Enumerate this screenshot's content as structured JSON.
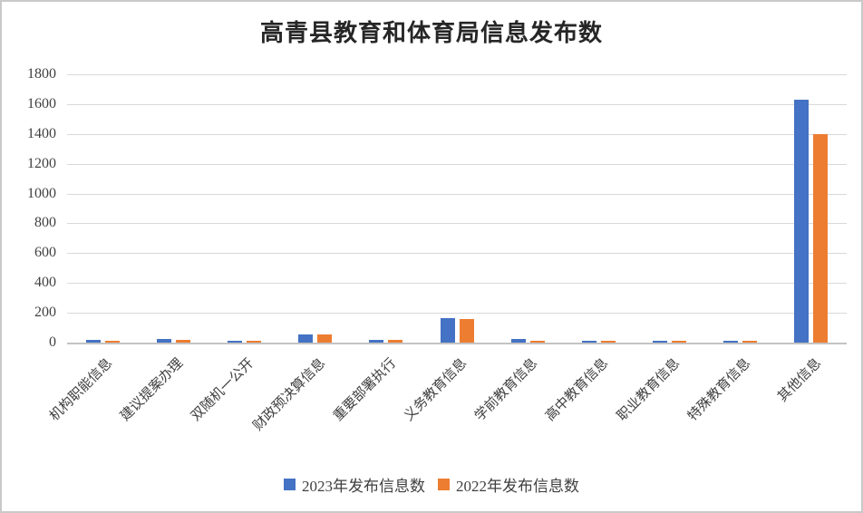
{
  "chart_data": {
    "type": "bar",
    "title": "高青县教育和体育局信息发布数",
    "categories": [
      "机构职能信息",
      "建议提案办理",
      "双随机一公开",
      "财政预决算信息",
      "重要部署执行",
      "义务教育信息",
      "学前教育信息",
      "高中教育信息",
      "职业教育信息",
      "特殊教育信息",
      "其他信息"
    ],
    "series": [
      {
        "name": "2023年发布信息数",
        "color": "#4472C4",
        "values": [
          18,
          22,
          12,
          55,
          20,
          165,
          22,
          14,
          14,
          14,
          1630
        ]
      },
      {
        "name": "2022年发布信息数",
        "color": "#ED7D31",
        "values": [
          8,
          16,
          8,
          52,
          16,
          160,
          10,
          10,
          10,
          10,
          1400
        ]
      }
    ],
    "xlabel": "",
    "ylabel": "",
    "ylim": [
      0,
      1800
    ],
    "yticks": [
      0,
      200,
      400,
      600,
      800,
      1000,
      1200,
      1400,
      1600,
      1800
    ],
    "grid": true,
    "legend_position": "bottom"
  }
}
